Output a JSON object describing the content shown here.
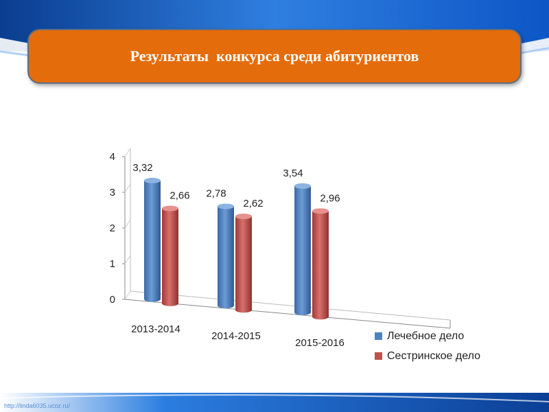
{
  "slide": {
    "title": "Результаты  конкурса среди абитуриентов",
    "footer": "http://linda6035.ucoz.ru/"
  },
  "colors": {
    "title_bg": "#e46c0a",
    "series_blue": "#4f81bd",
    "series_red": "#c0504d"
  },
  "chart_data": {
    "type": "bar",
    "categories": [
      "2013-2014",
      "2014-2015",
      "2015-2016"
    ],
    "series": [
      {
        "name": "Лечебное дело",
        "values": [
          3.32,
          2.78,
          3.54
        ],
        "labels": [
          "3,32",
          "2,78",
          "3,54"
        ]
      },
      {
        "name": "Сестринское дело",
        "values": [
          2.66,
          2.62,
          2.96
        ],
        "labels": [
          "2,66",
          "2,62",
          "2,96"
        ]
      }
    ],
    "ylim": [
      0,
      4
    ],
    "yticks": [
      "0",
      "1",
      "2",
      "3",
      "4"
    ],
    "legend_position": "bottom-right",
    "style": "3d-cylinder"
  }
}
